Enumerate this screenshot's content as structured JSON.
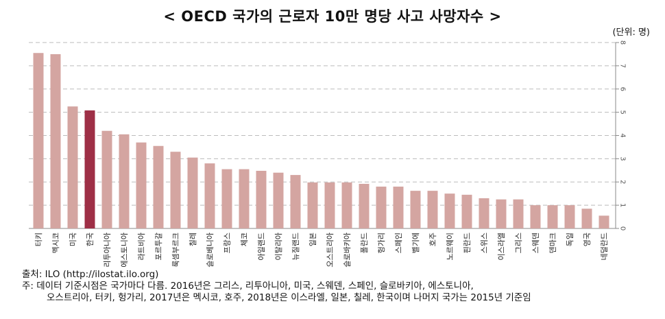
{
  "title": "< OECD 국가의 근로자 10만 명당 사고 사망자수 >",
  "unit": "(단위: 명)",
  "source": "출처: ILO (http://ilostat.ilo.org)",
  "note_line1": "주: 데이터 기준시점은 국가마다 다름. 2016년은 그리스, 리투아니아, 미국, 스웨덴, 스페인, 슬로바키아, 에스토니아,",
  "note_line2": "오스트리아, 터키, 헝가리, 2017년은 멕시코, 호주, 2018년은 이스라엘, 일본, 칠레, 한국이며 나머지 국가는 2015년 기준임",
  "colors": {
    "bar": "#d4a5a1",
    "highlight": "#9e2f46",
    "grid": "#bbbbbb",
    "axis": "#888888"
  },
  "chart_data": {
    "type": "bar",
    "categories": [
      "터키",
      "멕시코",
      "미국",
      "한국",
      "리투아니아",
      "에스토니아",
      "라트비아",
      "포르투갈",
      "룩셈부르크",
      "칠레",
      "슬로베니아",
      "프랑스",
      "체코",
      "아일랜드",
      "이탈리아",
      "뉴질랜드",
      "일본",
      "오스트리아",
      "슬로바키아",
      "폴란드",
      "헝가리",
      "스페인",
      "벨기에",
      "호주",
      "노르웨이",
      "핀란드",
      "스위스",
      "이스라엘",
      "그리스",
      "스웨덴",
      "덴마크",
      "독일",
      "영국",
      "네덜란드"
    ],
    "values": [
      7.55,
      7.5,
      5.25,
      5.08,
      4.2,
      4.05,
      3.7,
      3.55,
      3.3,
      3.05,
      2.8,
      2.55,
      2.55,
      2.48,
      2.4,
      2.3,
      1.98,
      1.98,
      1.98,
      1.92,
      1.8,
      1.8,
      1.62,
      1.62,
      1.5,
      1.45,
      1.3,
      1.25,
      1.25,
      1.0,
      1.0,
      1.0,
      0.85,
      0.55
    ],
    "highlight": "한국",
    "y_ticks": [
      "0",
      "1",
      "2",
      "3",
      "4",
      "5",
      "6",
      "7",
      "8"
    ],
    "ylim": [
      0,
      8
    ],
    "y_axis_side": "right",
    "grid": true
  }
}
